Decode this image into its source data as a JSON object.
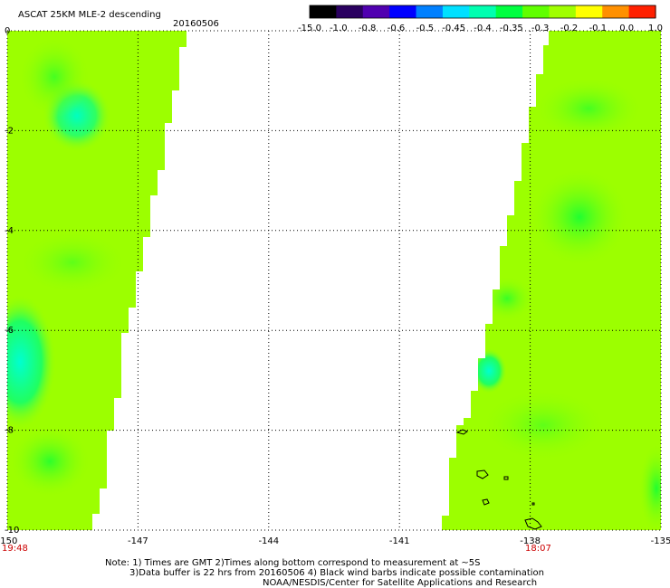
{
  "title": "ASCAT 25KM MLE-2 descending",
  "date": "20160506",
  "colorbar": {
    "labels": [
      "-15.0",
      "-1.0",
      "-0.8",
      "-0.6",
      "-0.5",
      "-0.45",
      "-0.4",
      "-0.35",
      "-0.3",
      "-0.2",
      "-0.1",
      "0.0",
      "1.0"
    ],
    "colors": [
      "#000000",
      "#2a0060",
      "#5000b0",
      "#0000ff",
      "#0080ff",
      "#00e0ff",
      "#00ffb0",
      "#00ff40",
      "#60ff00",
      "#a0ff00",
      "#ffff00",
      "#ff9000",
      "#ff2000"
    ]
  },
  "map": {
    "lon_range": [
      -150,
      -135
    ],
    "lat_range": [
      -10,
      0
    ],
    "x_ticks": [
      "-150",
      "-147",
      "-144",
      "-141",
      "-138",
      "-135"
    ],
    "y_ticks": [
      "0",
      "-2",
      "-4",
      "-6",
      "-8",
      "-10"
    ],
    "time_left": "19:48",
    "time_right": "18:07",
    "land_color": "#ffffff",
    "swath_color": "#9cff00"
  },
  "notes": {
    "line1": "Note: 1) Times are GMT 2)Times along bottom correspond to measurement at ~5S",
    "line2": "3)Data buffer is 22 hrs from 20160506 4) Black wind barbs indicate possible contamination",
    "line3": "NOAA/NESDIS/Center for Satellite Applications and Research"
  }
}
